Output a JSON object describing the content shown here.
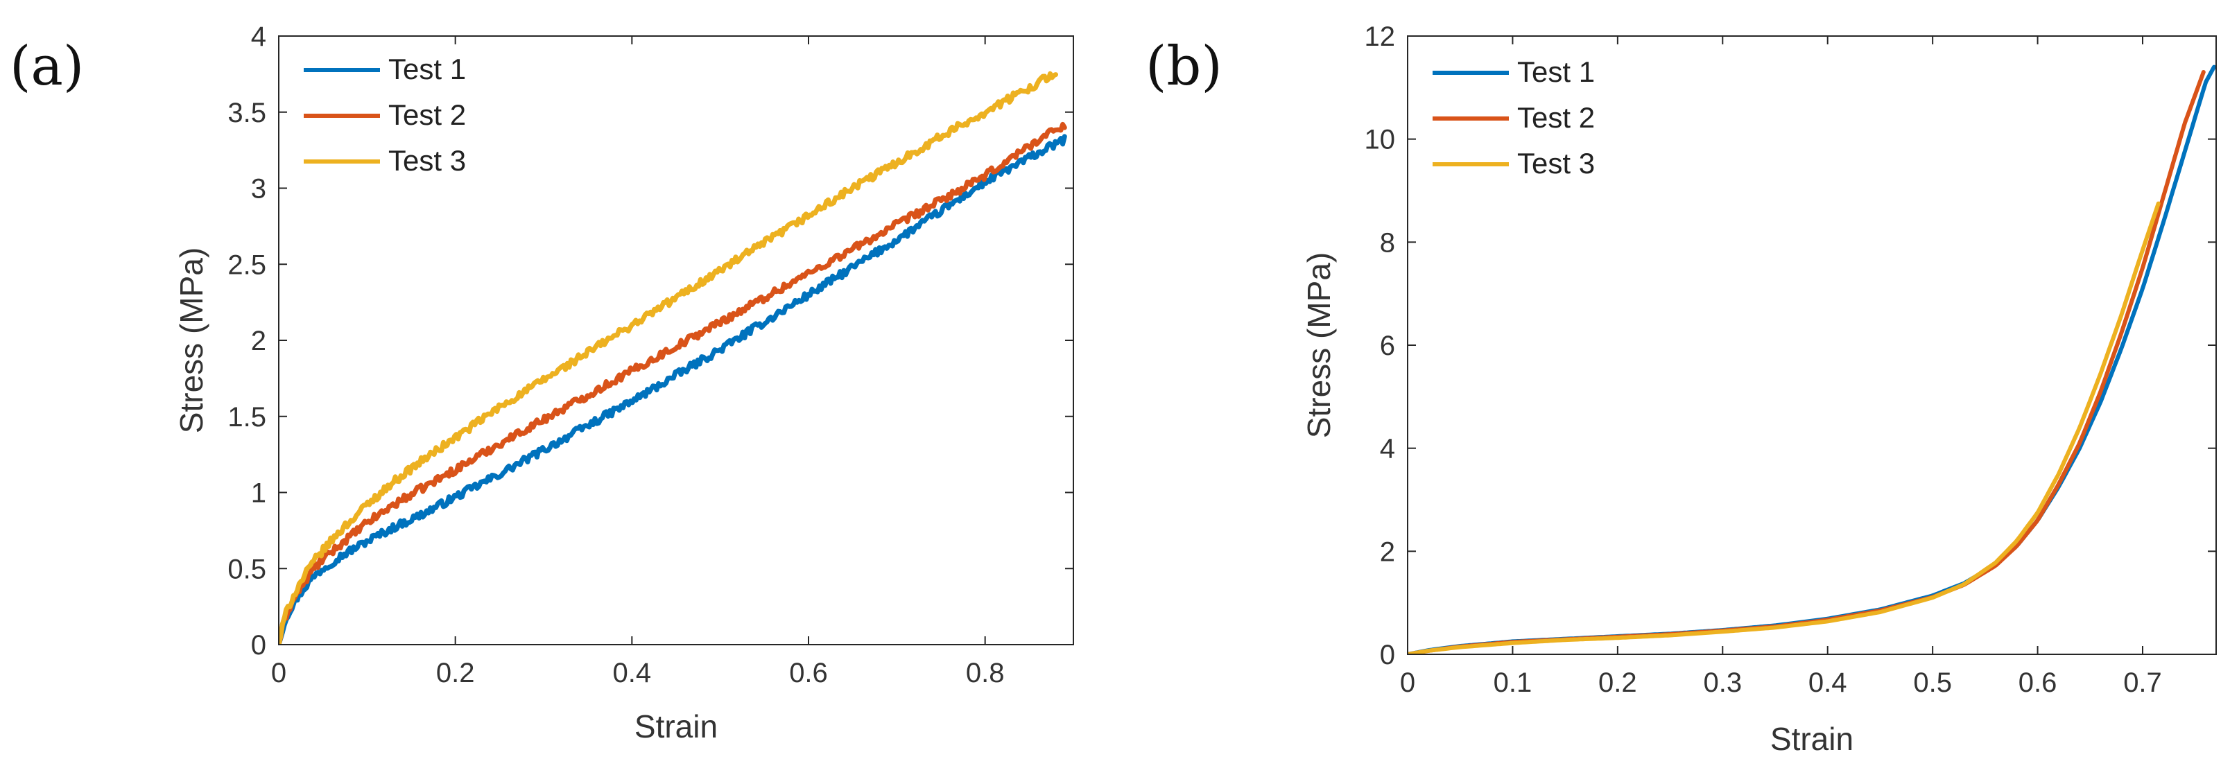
{
  "chart_data": [
    {
      "type": "line",
      "panel_label": "(a)",
      "title": "",
      "xlabel": "Strain",
      "ylabel": "Stress (MPa)",
      "xlim": [
        0,
        0.9
      ],
      "ylim": [
        0,
        4
      ],
      "xticks": [
        0,
        0.2,
        0.4,
        0.6,
        0.8
      ],
      "xtick_labels": [
        "0",
        "0.2",
        "0.4",
        "0.6",
        "0.8"
      ],
      "yticks": [
        0,
        0.5,
        1,
        1.5,
        2,
        2.5,
        3,
        3.5,
        4
      ],
      "ytick_labels": [
        "0",
        "0.5",
        "1",
        "1.5",
        "2",
        "2.5",
        "3",
        "3.5",
        "4"
      ],
      "grid": false,
      "legend_position": "top-left",
      "noisy": true,
      "series": [
        {
          "name": "Test 1",
          "color": "#0072BD",
          "x": [
            0,
            0.005,
            0.01,
            0.02,
            0.03,
            0.04,
            0.05,
            0.07,
            0.1,
            0.13,
            0.16,
            0.2,
            0.25,
            0.3,
            0.35,
            0.4,
            0.45,
            0.5,
            0.55,
            0.6,
            0.65,
            0.7,
            0.75,
            0.8,
            0.85,
            0.89
          ],
          "values": [
            0,
            0.12,
            0.2,
            0.3,
            0.38,
            0.45,
            0.5,
            0.58,
            0.68,
            0.77,
            0.85,
            0.97,
            1.12,
            1.28,
            1.44,
            1.6,
            1.77,
            1.94,
            2.12,
            2.3,
            2.48,
            2.66,
            2.85,
            3.04,
            3.2,
            3.32
          ]
        },
        {
          "name": "Test 2",
          "color": "#D95319",
          "x": [
            0,
            0.005,
            0.01,
            0.02,
            0.03,
            0.04,
            0.05,
            0.07,
            0.1,
            0.13,
            0.16,
            0.2,
            0.25,
            0.3,
            0.35,
            0.4,
            0.45,
            0.5,
            0.55,
            0.6,
            0.65,
            0.7,
            0.75,
            0.8,
            0.85,
            0.89
          ],
          "values": [
            0,
            0.13,
            0.22,
            0.33,
            0.42,
            0.5,
            0.56,
            0.66,
            0.8,
            0.92,
            1.02,
            1.15,
            1.32,
            1.48,
            1.64,
            1.8,
            1.96,
            2.12,
            2.28,
            2.44,
            2.6,
            2.76,
            2.92,
            3.08,
            3.28,
            3.42
          ]
        },
        {
          "name": "Test 3",
          "color": "#EDB120",
          "x": [
            0,
            0.005,
            0.01,
            0.02,
            0.03,
            0.04,
            0.05,
            0.07,
            0.1,
            0.13,
            0.16,
            0.2,
            0.25,
            0.3,
            0.35,
            0.4,
            0.45,
            0.5,
            0.55,
            0.6,
            0.65,
            0.7,
            0.75,
            0.8,
            0.85,
            0.88
          ],
          "values": [
            0,
            0.14,
            0.24,
            0.36,
            0.46,
            0.55,
            0.62,
            0.75,
            0.92,
            1.07,
            1.2,
            1.36,
            1.56,
            1.74,
            1.92,
            2.1,
            2.28,
            2.46,
            2.64,
            2.82,
            3.0,
            3.17,
            3.34,
            3.5,
            3.66,
            3.76
          ]
        }
      ]
    },
    {
      "type": "line",
      "panel_label": "(b)",
      "title": "",
      "xlabel": "Strain",
      "ylabel": "Stress (MPa)",
      "xlim": [
        0,
        0.77
      ],
      "ylim": [
        0,
        12
      ],
      "xticks": [
        0,
        0.1,
        0.2,
        0.3,
        0.4,
        0.5,
        0.6,
        0.7
      ],
      "xtick_labels": [
        "0",
        "0.1",
        "0.2",
        "0.3",
        "0.4",
        "0.5",
        "0.6",
        "0.7"
      ],
      "yticks": [
        0,
        2,
        4,
        6,
        8,
        10,
        12
      ],
      "ytick_labels": [
        "0",
        "2",
        "4",
        "6",
        "8",
        "10",
        "12"
      ],
      "grid": false,
      "legend_position": "top-left",
      "noisy": false,
      "series": [
        {
          "name": "Test 1",
          "color": "#0072BD",
          "x": [
            0,
            0.02,
            0.05,
            0.1,
            0.15,
            0.2,
            0.25,
            0.3,
            0.35,
            0.4,
            0.45,
            0.5,
            0.53,
            0.56,
            0.58,
            0.6,
            0.62,
            0.64,
            0.66,
            0.68,
            0.7,
            0.72,
            0.74,
            0.76,
            0.768
          ],
          "values": [
            0,
            0.08,
            0.16,
            0.25,
            0.3,
            0.35,
            0.4,
            0.47,
            0.56,
            0.69,
            0.87,
            1.14,
            1.38,
            1.74,
            2.1,
            2.6,
            3.25,
            4.0,
            4.9,
            5.95,
            7.1,
            8.4,
            9.75,
            11.1,
            11.4
          ]
        },
        {
          "name": "Test 2",
          "color": "#D95319",
          "x": [
            0,
            0.02,
            0.05,
            0.1,
            0.15,
            0.2,
            0.25,
            0.3,
            0.35,
            0.4,
            0.45,
            0.5,
            0.53,
            0.56,
            0.58,
            0.6,
            0.62,
            0.64,
            0.66,
            0.68,
            0.7,
            0.72,
            0.74,
            0.758
          ],
          "values": [
            0,
            0.07,
            0.15,
            0.24,
            0.29,
            0.34,
            0.39,
            0.46,
            0.54,
            0.67,
            0.85,
            1.11,
            1.35,
            1.72,
            2.1,
            2.6,
            3.3,
            4.1,
            5.1,
            6.25,
            7.5,
            8.9,
            10.3,
            11.3
          ]
        },
        {
          "name": "Test 3",
          "color": "#EDB120",
          "x": [
            0,
            0.02,
            0.05,
            0.1,
            0.15,
            0.2,
            0.25,
            0.3,
            0.35,
            0.4,
            0.45,
            0.5,
            0.53,
            0.56,
            0.58,
            0.6,
            0.62,
            0.64,
            0.66,
            0.68,
            0.7,
            0.715
          ],
          "values": [
            0,
            0.07,
            0.14,
            0.22,
            0.28,
            0.32,
            0.37,
            0.44,
            0.52,
            0.64,
            0.82,
            1.1,
            1.36,
            1.78,
            2.2,
            2.75,
            3.5,
            4.4,
            5.45,
            6.6,
            7.85,
            8.75
          ]
        }
      ]
    }
  ]
}
